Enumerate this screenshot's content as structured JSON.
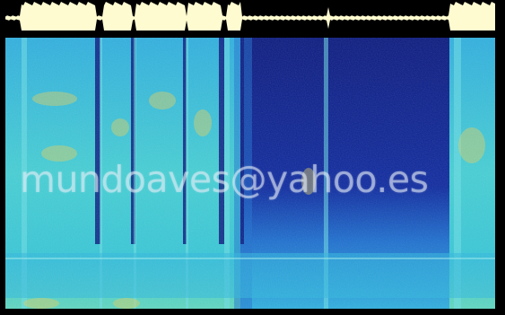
{
  "watermark": {
    "text": "mundoaves@yahoo.es"
  },
  "palette": {
    "background": "#000000",
    "waveform": "#fffbd0",
    "quiet": "#0a1e8c",
    "mid": "#1c7fd8",
    "active": "#40d2d2",
    "hot": "#e0d060"
  }
}
